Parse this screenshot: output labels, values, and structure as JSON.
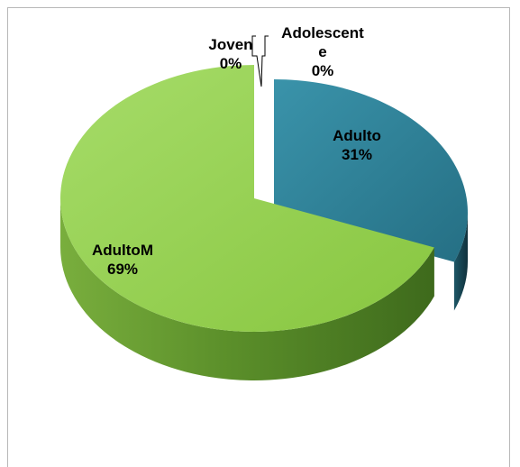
{
  "chart_data": {
    "type": "pie",
    "style": "3d-exploded",
    "series": [
      {
        "name": "Adolescente",
        "label_lines": [
          "Adolescent",
          "e"
        ],
        "percent_label": "0%",
        "value": 0,
        "color": "#3f8fa6"
      },
      {
        "name": "Adulto",
        "label_lines": [
          "Adulto"
        ],
        "percent_label": "31%",
        "value": 31,
        "color": "#2e7f95"
      },
      {
        "name": "AdultoM",
        "label_lines": [
          "AdultoM"
        ],
        "percent_label": "69%",
        "value": 69,
        "color": "#92d050"
      },
      {
        "name": "Joven",
        "label_lines": [
          "Joven"
        ],
        "percent_label": "0%",
        "value": 0,
        "color": "#7fb53f"
      }
    ],
    "legend": "none"
  }
}
